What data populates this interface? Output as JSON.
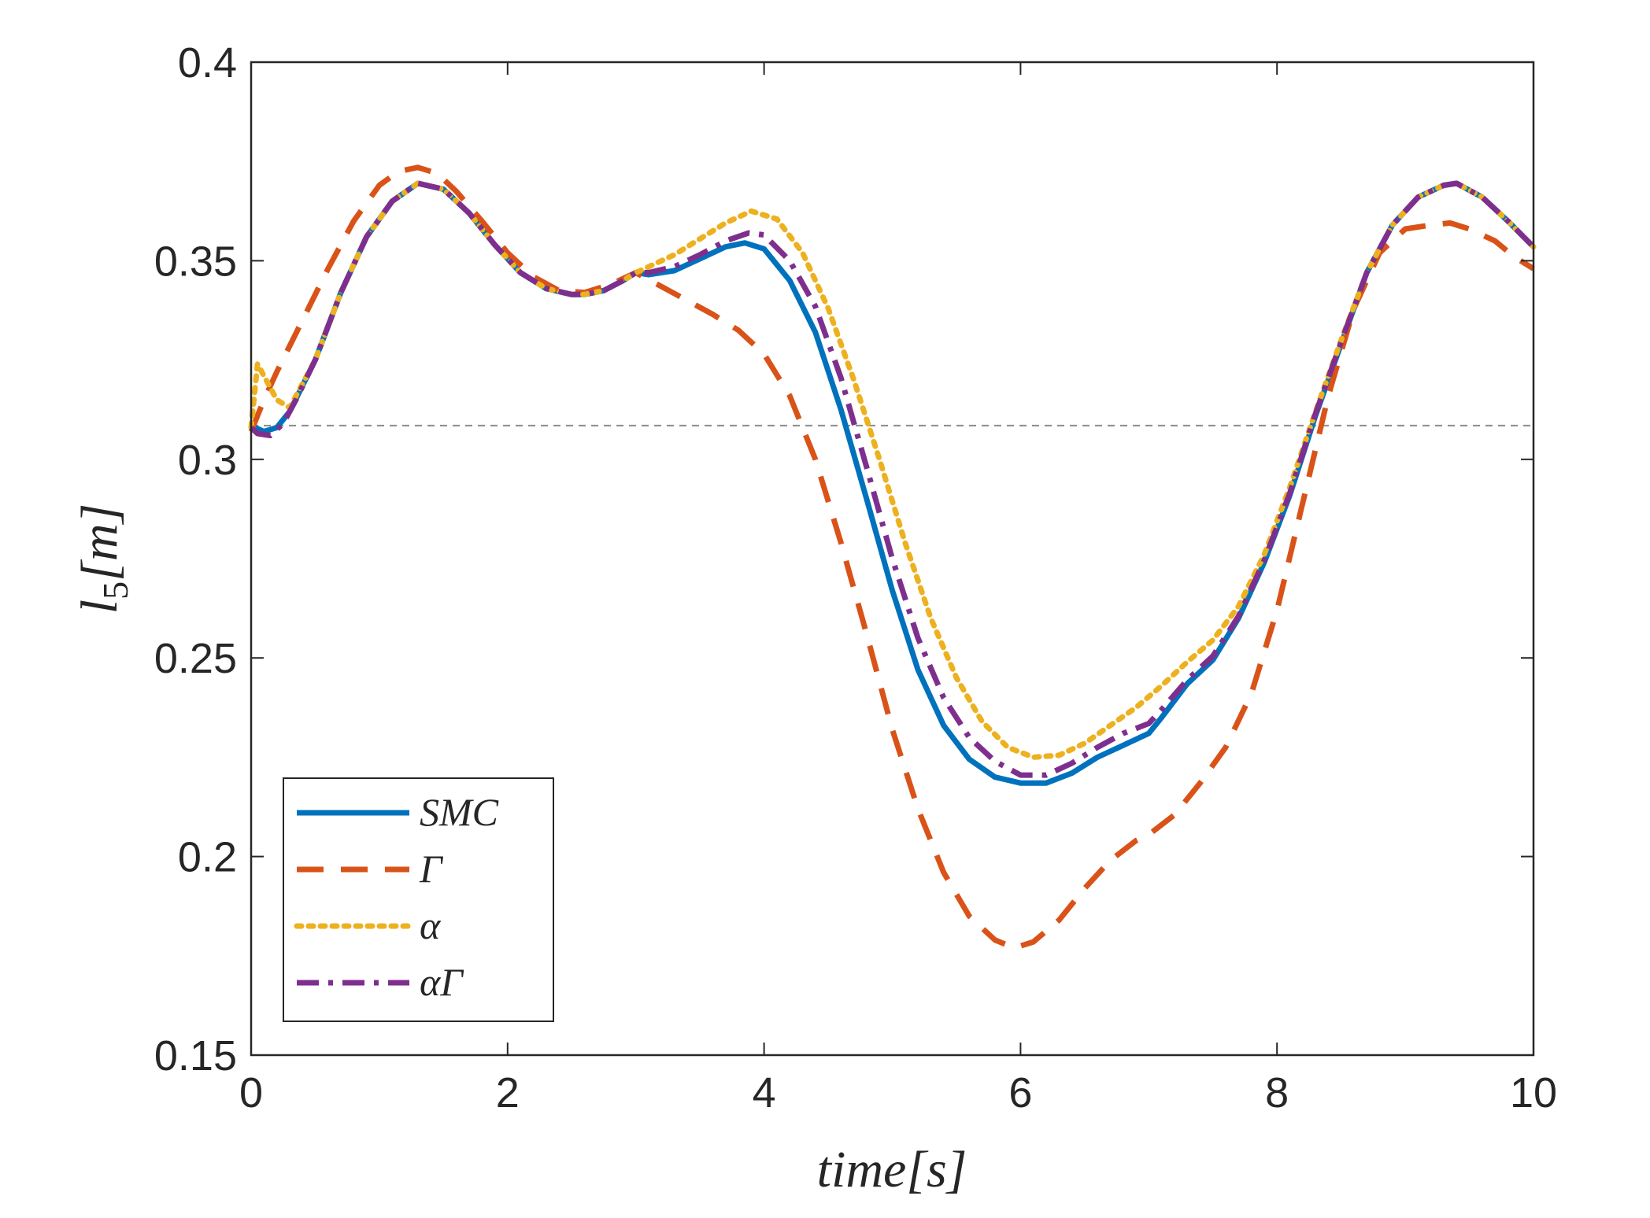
{
  "chart_data": {
    "type": "line",
    "title": "",
    "xlabel": "time[s]",
    "ylabel": "l5[m]",
    "ylabel_main": "l",
    "ylabel_sub": "5",
    "ylabel_unit": "[m]",
    "xlim": [
      0,
      10
    ],
    "ylim": [
      0.15,
      0.4
    ],
    "xticks": [
      0,
      2,
      4,
      6,
      8,
      10
    ],
    "xtick_labels": [
      "0",
      "2",
      "4",
      "6",
      "8",
      "10"
    ],
    "yticks": [
      0.15,
      0.2,
      0.25,
      0.3,
      0.35,
      0.4
    ],
    "ytick_labels": [
      "0.15",
      "0.2",
      "0.25",
      "0.3",
      "0.35",
      "0.4"
    ],
    "grid": false,
    "legend_position": "bottom-left",
    "reference_line": {
      "y": 0.3085,
      "color": "#8c8c8c",
      "style": "dashed"
    },
    "series": [
      {
        "name": "SMC",
        "color": "#0072BD",
        "style": "solid",
        "x": [
          0,
          0.1,
          0.2,
          0.3,
          0.5,
          0.7,
          0.9,
          1.1,
          1.3,
          1.5,
          1.7,
          1.9,
          2.1,
          2.3,
          2.5,
          2.6,
          2.75,
          2.9,
          3.0,
          3.1,
          3.3,
          3.5,
          3.7,
          3.85,
          4.0,
          4.2,
          4.4,
          4.6,
          4.8,
          5.0,
          5.2,
          5.4,
          5.6,
          5.8,
          6.0,
          6.2,
          6.4,
          6.6,
          6.8,
          7.0,
          7.1,
          7.3,
          7.5,
          7.7,
          7.9,
          8.1,
          8.3,
          8.5,
          8.7,
          8.9,
          9.1,
          9.3,
          9.4,
          9.6,
          9.8,
          10.0
        ],
        "values": [
          0.3085,
          0.307,
          0.308,
          0.312,
          0.325,
          0.342,
          0.356,
          0.365,
          0.3695,
          0.368,
          0.362,
          0.354,
          0.347,
          0.343,
          0.3415,
          0.3415,
          0.3425,
          0.345,
          0.347,
          0.3465,
          0.3475,
          0.3505,
          0.3535,
          0.3545,
          0.353,
          0.345,
          0.332,
          0.3125,
          0.29,
          0.267,
          0.247,
          0.233,
          0.2245,
          0.22,
          0.2185,
          0.2185,
          0.221,
          0.225,
          0.228,
          0.231,
          0.235,
          0.2435,
          0.2495,
          0.26,
          0.274,
          0.291,
          0.311,
          0.329,
          0.347,
          0.359,
          0.366,
          0.369,
          0.3695,
          0.366,
          0.36,
          0.3535
        ]
      },
      {
        "name": "Γ",
        "color": "#D95319",
        "style": "dashed",
        "x": [
          0,
          0.1,
          0.2,
          0.4,
          0.6,
          0.8,
          1.0,
          1.15,
          1.3,
          1.45,
          1.6,
          1.8,
          2.0,
          2.2,
          2.4,
          2.6,
          2.8,
          3.0,
          3.2,
          3.4,
          3.6,
          3.8,
          4.0,
          4.2,
          4.4,
          4.6,
          4.8,
          5.0,
          5.2,
          5.4,
          5.6,
          5.8,
          5.95,
          6.1,
          6.3,
          6.5,
          6.7,
          6.9,
          7.0,
          7.2,
          7.4,
          7.6,
          7.8,
          8.0,
          8.2,
          8.4,
          8.6,
          8.8,
          9.0,
          9.2,
          9.35,
          9.5,
          9.7,
          9.85,
          10.0
        ],
        "values": [
          0.307,
          0.315,
          0.322,
          0.335,
          0.348,
          0.36,
          0.369,
          0.3725,
          0.3735,
          0.372,
          0.3675,
          0.36,
          0.352,
          0.346,
          0.3425,
          0.342,
          0.344,
          0.347,
          0.3435,
          0.34,
          0.3365,
          0.3325,
          0.3265,
          0.316,
          0.3,
          0.279,
          0.256,
          0.232,
          0.212,
          0.196,
          0.185,
          0.179,
          0.177,
          0.1785,
          0.184,
          0.192,
          0.199,
          0.204,
          0.2055,
          0.2105,
          0.2185,
          0.2275,
          0.241,
          0.262,
          0.289,
          0.316,
          0.338,
          0.352,
          0.358,
          0.359,
          0.3595,
          0.358,
          0.355,
          0.351,
          0.348
        ]
      },
      {
        "name": "α",
        "color": "#EDB120",
        "style": "dotted",
        "x": [
          0,
          0.05,
          0.1,
          0.2,
          0.3,
          0.5,
          0.7,
          0.9,
          1.1,
          1.3,
          1.5,
          1.7,
          1.9,
          2.1,
          2.3,
          2.5,
          2.6,
          2.75,
          2.9,
          3.0,
          3.1,
          3.3,
          3.5,
          3.7,
          3.9,
          4.1,
          4.3,
          4.5,
          4.7,
          4.9,
          5.1,
          5.3,
          5.5,
          5.7,
          5.9,
          6.1,
          6.3,
          6.5,
          6.7,
          6.9,
          7.1,
          7.3,
          7.5,
          7.7,
          7.9,
          8.1,
          8.3,
          8.5,
          8.7,
          8.9,
          9.1,
          9.3,
          9.4,
          9.6,
          9.8,
          10.0
        ],
        "values": [
          0.308,
          0.324,
          0.321,
          0.315,
          0.313,
          0.325,
          0.342,
          0.356,
          0.365,
          0.3695,
          0.368,
          0.362,
          0.354,
          0.347,
          0.343,
          0.3415,
          0.3415,
          0.3425,
          0.345,
          0.347,
          0.3485,
          0.3515,
          0.3555,
          0.3595,
          0.3625,
          0.3605,
          0.352,
          0.338,
          0.32,
          0.3,
          0.279,
          0.26,
          0.245,
          0.234,
          0.2275,
          0.225,
          0.2255,
          0.2285,
          0.233,
          0.2375,
          0.243,
          0.249,
          0.2545,
          0.263,
          0.276,
          0.293,
          0.312,
          0.33,
          0.347,
          0.359,
          0.366,
          0.369,
          0.3695,
          0.366,
          0.36,
          0.3535
        ]
      },
      {
        "name": "αΓ",
        "color": "#7E2F8E",
        "style": "dashdot",
        "x": [
          0,
          0.05,
          0.15,
          0.25,
          0.35,
          0.5,
          0.7,
          0.9,
          1.1,
          1.3,
          1.5,
          1.7,
          1.9,
          2.1,
          2.3,
          2.5,
          2.6,
          2.75,
          2.9,
          3.0,
          3.1,
          3.3,
          3.5,
          3.7,
          3.88,
          4.0,
          4.2,
          4.4,
          4.6,
          4.8,
          5.0,
          5.2,
          5.4,
          5.6,
          5.8,
          6.0,
          6.2,
          6.4,
          6.6,
          6.8,
          7.0,
          7.1,
          7.3,
          7.5,
          7.7,
          7.9,
          8.1,
          8.3,
          8.5,
          8.7,
          8.9,
          9.1,
          9.3,
          9.4,
          9.6,
          9.8,
          10.0
        ],
        "values": [
          0.308,
          0.3065,
          0.306,
          0.309,
          0.315,
          0.325,
          0.342,
          0.356,
          0.365,
          0.3695,
          0.368,
          0.362,
          0.354,
          0.347,
          0.343,
          0.3415,
          0.3415,
          0.3425,
          0.345,
          0.347,
          0.347,
          0.3485,
          0.3515,
          0.355,
          0.357,
          0.3565,
          0.35,
          0.3385,
          0.3205,
          0.298,
          0.275,
          0.255,
          0.24,
          0.23,
          0.224,
          0.2205,
          0.2205,
          0.2235,
          0.2275,
          0.231,
          0.2335,
          0.237,
          0.2445,
          0.2505,
          0.2605,
          0.2745,
          0.2915,
          0.3115,
          0.3295,
          0.347,
          0.359,
          0.366,
          0.369,
          0.3695,
          0.366,
          0.36,
          0.3535
        ]
      }
    ]
  }
}
